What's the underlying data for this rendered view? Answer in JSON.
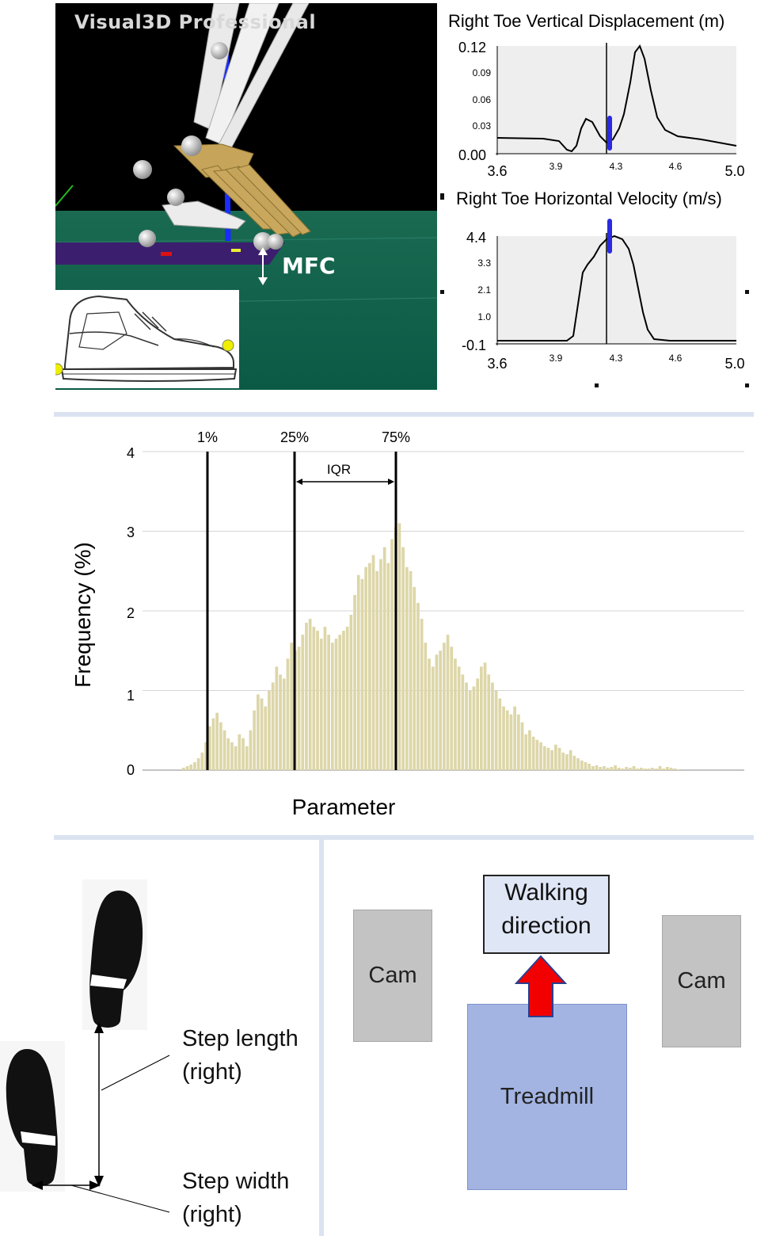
{
  "software": {
    "title": "Visual3D Professional"
  },
  "mfc_label": "MFC",
  "vertical_plot": {
    "title": "Right Toe Vertical Displacement (m)",
    "y_ticks": [
      "0.12",
      "0.09",
      "0.06",
      "0.03",
      "0.00"
    ],
    "x_ticks": [
      "3.6",
      "3.9",
      "4.3",
      "4.6",
      "5.0"
    ]
  },
  "velocity_plot": {
    "title": "Right Toe Horizontal Velocity (m/s)",
    "y_ticks": [
      "4.4",
      "3.3",
      "2.1",
      "1.0",
      "-0.1"
    ],
    "x_ticks": [
      "3.6",
      "3.9",
      "4.3",
      "4.6",
      "5.0"
    ]
  },
  "histogram": {
    "ylabel": "Frequency (%)",
    "xlabel": "Parameter",
    "y_ticks": [
      "4",
      "3",
      "2",
      "1",
      "0"
    ],
    "markers": [
      "1%",
      "25%",
      "75%"
    ],
    "iqr_label": "IQR",
    "bar_color": "#ddd6a8",
    "values": [
      0.03,
      0.05,
      0.07,
      0.1,
      0.15,
      0.22,
      0.35,
      0.55,
      0.65,
      0.72,
      0.6,
      0.5,
      0.4,
      0.35,
      0.3,
      0.45,
      0.4,
      0.3,
      0.5,
      0.75,
      0.95,
      0.9,
      0.8,
      1.0,
      1.1,
      1.3,
      1.2,
      1.15,
      1.4,
      1.6,
      1.5,
      1.55,
      1.7,
      1.85,
      1.9,
      1.8,
      1.75,
      1.65,
      1.8,
      1.7,
      1.6,
      1.65,
      1.7,
      1.75,
      1.8,
      1.95,
      2.2,
      2.45,
      2.4,
      2.55,
      2.6,
      2.7,
      2.5,
      2.65,
      2.8,
      2.6,
      2.9,
      3.05,
      3.1,
      2.8,
      2.55,
      2.5,
      2.3,
      2.1,
      1.9,
      1.6,
      1.4,
      1.3,
      1.45,
      1.5,
      1.6,
      1.7,
      1.55,
      1.4,
      1.3,
      1.2,
      1.1,
      1.0,
      1.05,
      1.15,
      1.3,
      1.35,
      1.2,
      1.1,
      1.0,
      0.9,
      0.8,
      0.75,
      0.7,
      0.8,
      0.7,
      0.6,
      0.45,
      0.5,
      0.42,
      0.38,
      0.35,
      0.3,
      0.28,
      0.25,
      0.32,
      0.28,
      0.22,
      0.2,
      0.25,
      0.18,
      0.15,
      0.12,
      0.1,
      0.08,
      0.05,
      0.06,
      0.04,
      0.05,
      0.03,
      0.04,
      0.06,
      0.03,
      0.02,
      0.04,
      0.03,
      0.05,
      0.02,
      0.03,
      0.02,
      0.02,
      0.03,
      0.02,
      0.05,
      0.02,
      0.04,
      0.03,
      0.02,
      0.01
    ]
  },
  "gait": {
    "step_length_label": [
      "Step length",
      "(right)"
    ],
    "step_width_label": [
      "Step width",
      "(right)"
    ]
  },
  "setup": {
    "walking_direction": [
      "Walking",
      "direction"
    ],
    "cam_left": "Cam",
    "cam_right": "Cam",
    "treadmill": "Treadmill"
  }
}
